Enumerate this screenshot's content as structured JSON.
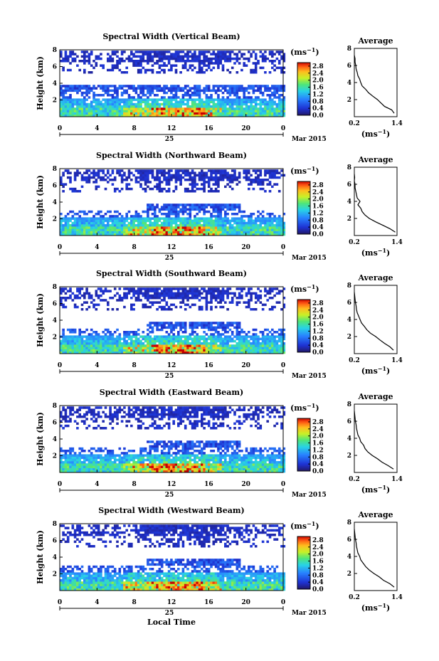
{
  "chart_data": [
    {
      "type": "heatmap",
      "title": "Spectral Width (Vertical Beam)",
      "ylabel": "Height (km)",
      "ylim": [
        0,
        8
      ],
      "yticks": [
        "2",
        "4",
        "6",
        "8"
      ],
      "xlim": [
        0,
        24
      ],
      "xticks": [
        "0",
        "4",
        "8",
        "12",
        "16",
        "20",
        "0"
      ],
      "date_day": "25",
      "date_month": "Mar 2015",
      "colorbar": {
        "unit": "(ms",
        "unit_exp": "−1",
        "unit_close": ")",
        "ticks": [
          "0.0",
          "0.4",
          "0.8",
          "1.2",
          "1.6",
          "2.0",
          "2.4",
          "2.8"
        ],
        "range": [
          0,
          3.0
        ]
      },
      "profile": {
        "title": "Average",
        "xlabel": "(ms",
        "xlabel_exp": "−1",
        "xlabel_close": ")",
        "xticks": [
          "0.2",
          "1.4"
        ],
        "xlim": [
          0.2,
          1.4
        ],
        "yticks": [
          "2",
          "4",
          "6",
          "8"
        ],
        "ylim": [
          0,
          8
        ],
        "height_km": [
          0.4,
          0.8,
          1.2,
          1.6,
          2.0,
          2.4,
          2.8,
          3.2,
          3.6,
          4.0,
          4.4,
          4.8,
          5.2,
          5.6,
          6.0,
          6.4,
          6.8,
          7.2
        ],
        "width_ms": [
          1.32,
          1.25,
          1.05,
          0.95,
          0.85,
          0.72,
          0.6,
          0.52,
          0.42,
          0.38,
          0.35,
          0.3,
          0.28,
          0.25,
          0.24,
          0.22,
          0.22,
          0.2
        ]
      }
    },
    {
      "type": "heatmap",
      "title": "Spectral Width (Northward Beam)",
      "ylabel": "Height (km)",
      "ylim": [
        0,
        8
      ],
      "yticks": [
        "2",
        "4",
        "6",
        "8"
      ],
      "xlim": [
        0,
        24
      ],
      "xticks": [
        "0",
        "4",
        "8",
        "12",
        "16",
        "20",
        "0"
      ],
      "date_day": "25",
      "date_month": "Mar 2015",
      "colorbar": {
        "unit": "(ms",
        "unit_exp": "−1",
        "unit_close": ")",
        "ticks": [
          "0.0",
          "0.4",
          "0.8",
          "1.2",
          "1.6",
          "2.0",
          "2.4",
          "2.8"
        ],
        "range": [
          0,
          3.0
        ]
      },
      "profile": {
        "title": "Average",
        "xlabel": "(ms",
        "xlabel_exp": "−1",
        "xlabel_close": ")",
        "xticks": [
          "0.2",
          "1.4"
        ],
        "xlim": [
          0.2,
          1.4
        ],
        "yticks": [
          "2",
          "4",
          "6",
          "8"
        ],
        "ylim": [
          0,
          8
        ],
        "height_km": [
          0.4,
          0.8,
          1.2,
          1.6,
          2.0,
          2.4,
          2.8,
          3.2,
          3.6,
          4.0,
          4.4,
          4.8,
          5.2,
          5.6,
          6.0,
          6.4,
          6.8,
          7.2
        ],
        "width_ms": [
          1.35,
          1.2,
          1.0,
          0.8,
          0.62,
          0.5,
          0.42,
          0.38,
          0.3,
          0.36,
          0.28,
          0.26,
          0.24,
          0.22,
          0.22,
          0.2,
          0.21,
          0.2
        ]
      }
    },
    {
      "type": "heatmap",
      "title": "Spectral Width (Southward Beam)",
      "ylabel": "Height (km)",
      "ylim": [
        0,
        8
      ],
      "yticks": [
        "2",
        "4",
        "6",
        "8"
      ],
      "xlim": [
        0,
        24
      ],
      "xticks": [
        "0",
        "4",
        "8",
        "12",
        "16",
        "20",
        "0"
      ],
      "date_day": "25",
      "date_month": "Mar 2015",
      "colorbar": {
        "unit": "(ms",
        "unit_exp": "−1",
        "unit_close": ")",
        "ticks": [
          "0.0",
          "0.4",
          "0.8",
          "1.2",
          "1.6",
          "2.0",
          "2.4",
          "2.8"
        ],
        "range": [
          0,
          3.0
        ]
      },
      "profile": {
        "title": "Average",
        "xlabel": "(ms",
        "xlabel_exp": "−1",
        "xlabel_close": ")",
        "xticks": [
          "0.2",
          "1.4"
        ],
        "xlim": [
          0.2,
          1.4
        ],
        "yticks": [
          "2",
          "4",
          "6",
          "8"
        ],
        "ylim": [
          0,
          8
        ],
        "height_km": [
          0.4,
          0.8,
          1.2,
          1.6,
          2.0,
          2.4,
          2.8,
          3.2,
          3.6,
          4.0,
          4.4,
          4.8,
          5.2,
          5.6,
          6.0,
          6.4,
          6.8,
          7.2
        ],
        "width_ms": [
          1.3,
          1.2,
          1.05,
          0.92,
          0.8,
          0.65,
          0.55,
          0.48,
          0.4,
          0.36,
          0.32,
          0.28,
          0.26,
          0.25,
          0.23,
          0.22,
          0.21,
          0.2
        ]
      }
    },
    {
      "type": "heatmap",
      "title": "Spectral Width (Eastward Beam)",
      "ylabel": "Height (km)",
      "ylim": [
        0,
        8
      ],
      "yticks": [
        "2",
        "4",
        "6",
        "8"
      ],
      "xlim": [
        0,
        24
      ],
      "xticks": [
        "0",
        "4",
        "8",
        "12",
        "16",
        "20",
        "0"
      ],
      "date_day": "25",
      "date_month": "Mar 2015",
      "colorbar": {
        "unit": "(ms",
        "unit_exp": "−1",
        "unit_close": ")",
        "ticks": [
          "0.0",
          "0.4",
          "0.8",
          "1.2",
          "1.6",
          "2.0",
          "2.4",
          "2.8"
        ],
        "range": [
          0,
          3.0
        ]
      },
      "profile": {
        "title": "Average",
        "xlabel": "(ms",
        "xlabel_exp": "−1",
        "xlabel_close": ")",
        "xticks": [
          "0.2",
          "1.4"
        ],
        "xlim": [
          0.2,
          1.4
        ],
        "yticks": [
          "2",
          "4",
          "6",
          "8"
        ],
        "ylim": [
          0,
          8
        ],
        "height_km": [
          0.4,
          0.8,
          1.2,
          1.6,
          2.0,
          2.4,
          2.8,
          3.2,
          3.6,
          4.0,
          4.4,
          4.8,
          5.2,
          5.6,
          6.0,
          6.4,
          6.8,
          7.2
        ],
        "width_ms": [
          1.3,
          1.15,
          0.98,
          0.85,
          0.7,
          0.58,
          0.5,
          0.46,
          0.38,
          0.35,
          0.3,
          0.28,
          0.26,
          0.25,
          0.23,
          0.22,
          0.21,
          0.2
        ]
      }
    },
    {
      "type": "heatmap",
      "title": "Spectral Width (Westward Beam)",
      "ylabel": "Height (km)",
      "ylim": [
        0,
        8
      ],
      "yticks": [
        "2",
        "4",
        "6",
        "8"
      ],
      "xlim": [
        0,
        24
      ],
      "xticks": [
        "0",
        "4",
        "8",
        "12",
        "16",
        "20",
        "0"
      ],
      "date_day": "25",
      "date_month": "Mar 2015",
      "colorbar": {
        "unit": "(ms",
        "unit_exp": "−1",
        "unit_close": ")",
        "ticks": [
          "0.0",
          "0.4",
          "0.8",
          "1.2",
          "1.6",
          "2.0",
          "2.4",
          "2.8"
        ],
        "range": [
          0,
          3.0
        ]
      },
      "profile": {
        "title": "Average",
        "xlabel": "(ms",
        "xlabel_exp": "−1",
        "xlabel_close": ")",
        "xticks": [
          "0.2",
          "1.4"
        ],
        "xlim": [
          0.2,
          1.4
        ],
        "yticks": [
          "2",
          "4",
          "6",
          "8"
        ],
        "ylim": [
          0,
          8
        ],
        "height_km": [
          0.4,
          0.8,
          1.2,
          1.6,
          2.0,
          2.4,
          2.8,
          3.2,
          3.6,
          4.0,
          4.4,
          4.8,
          5.2,
          5.6,
          6.0,
          6.4,
          6.8,
          7.2
        ],
        "width_ms": [
          1.32,
          1.2,
          1.02,
          0.9,
          0.75,
          0.62,
          0.52,
          0.45,
          0.38,
          0.35,
          0.3,
          0.28,
          0.26,
          0.25,
          0.23,
          0.22,
          0.21,
          0.2
        ]
      }
    }
  ],
  "footer": {
    "xlabel": "Local Time"
  }
}
